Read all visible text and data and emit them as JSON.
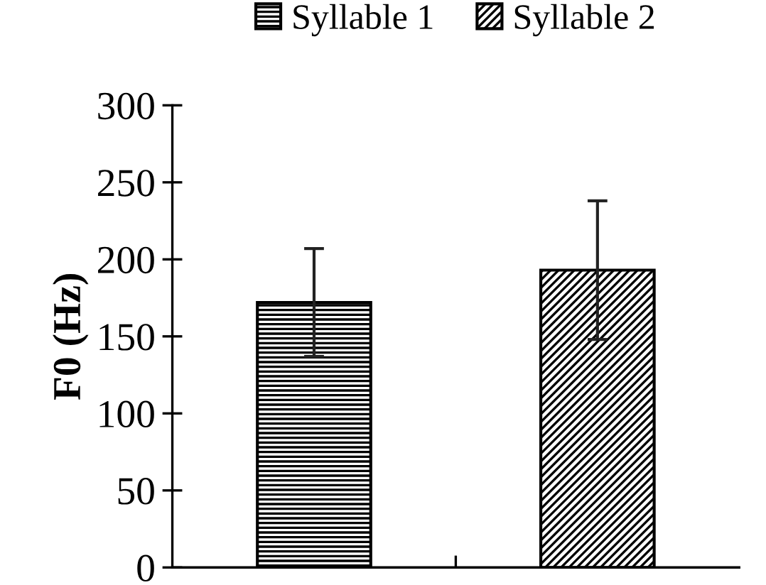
{
  "chart_data": {
    "type": "bar",
    "ylabel": "F0 (Hz)",
    "categories": [
      null,
      null
    ],
    "series": [
      {
        "name": "Syllable 1",
        "color": "#000000",
        "values": [
          172,
          null
        ],
        "errors": [
          [
            137,
            207
          ],
          null
        ]
      },
      {
        "name": "Syllable 2",
        "color": "#000000",
        "values": [
          null,
          193
        ],
        "errors": [
          null,
          [
            148,
            238
          ]
        ]
      }
    ],
    "ylim": [
      0,
      300
    ],
    "yticks": [
      0,
      50,
      100,
      150,
      200,
      250,
      300
    ],
    "grid": false,
    "legend": "top"
  }
}
